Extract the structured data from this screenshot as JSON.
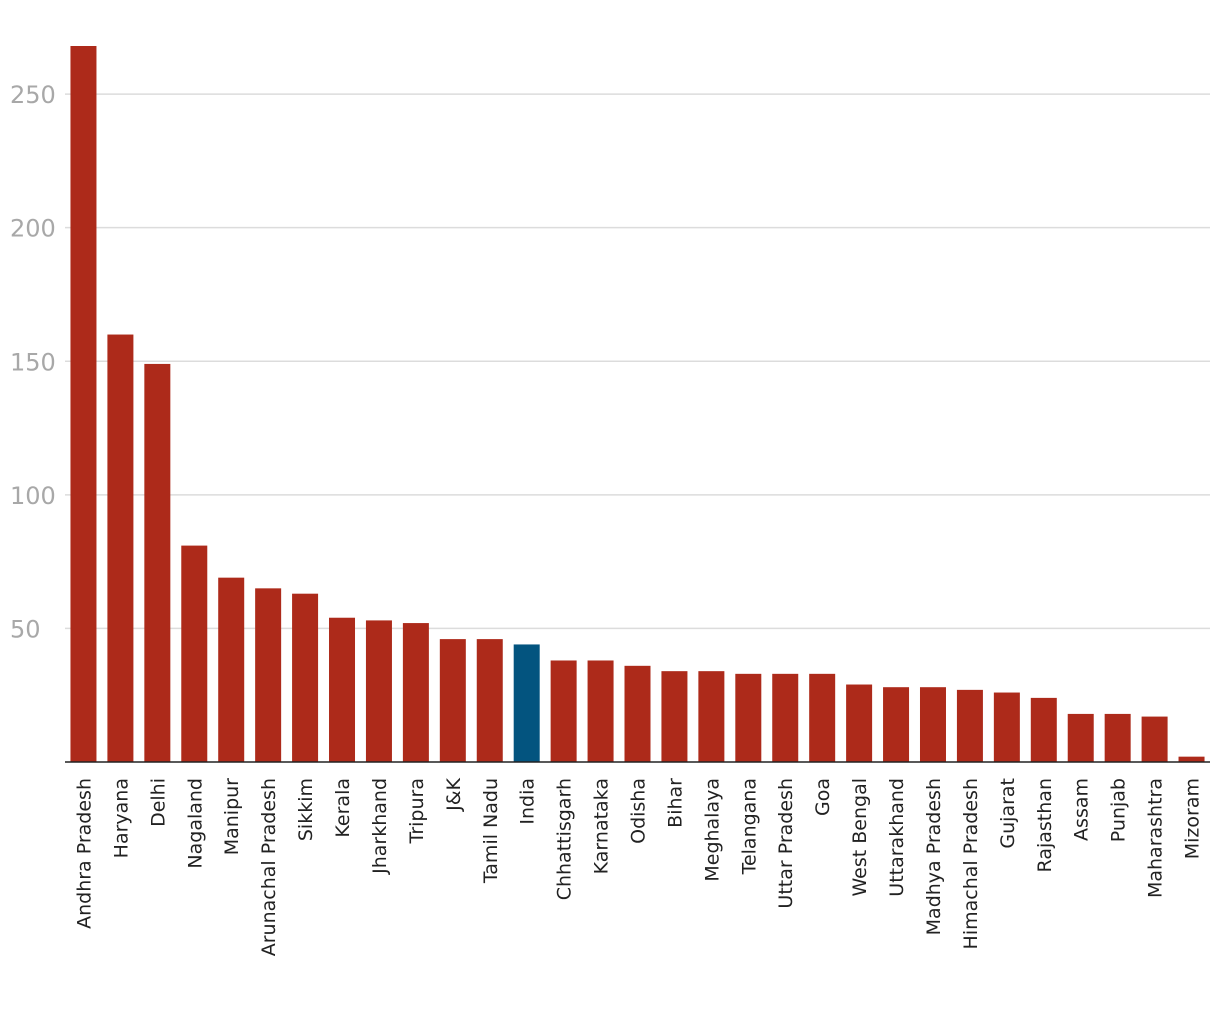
{
  "chart_data": {
    "type": "bar",
    "title": "",
    "xlabel": "",
    "ylabel": "",
    "ylim": [
      0,
      268
    ],
    "yticks": [
      50,
      100,
      150,
      200,
      250
    ],
    "grid": true,
    "categories": [
      "Andhra Pradesh",
      "Haryana",
      "Delhi",
      "Nagaland",
      "Manipur",
      "Arunachal Pradesh",
      "Sikkim",
      "Kerala",
      "Jharkhand",
      "Tripura",
      "J&K",
      "Tamil Nadu",
      "India",
      "Chhattisgarh",
      "Karnataka",
      "Odisha",
      "Bihar",
      "Meghalaya",
      "Telangana",
      "Uttar Pradesh",
      "Goa",
      "West Bengal",
      "Uttarakhand",
      "Madhya Pradesh",
      "Himachal Pradesh",
      "Gujarat",
      "Rajasthan",
      "Assam",
      "Punjab",
      "Maharashtra",
      "Mizoram"
    ],
    "values": [
      268,
      160,
      149,
      81,
      69,
      65,
      63,
      54,
      53,
      52,
      46,
      46,
      44,
      38,
      38,
      36,
      34,
      34,
      33,
      33,
      33,
      29,
      28,
      28,
      27,
      26,
      24,
      18,
      18,
      17,
      2
    ],
    "highlight_category": "India",
    "colors": {
      "bar": "#ad2a1a",
      "highlight": "#03547f",
      "grid": "#dcdcdc",
      "tick_label": "#a8a8a8",
      "category_label": "#222222",
      "axis": "#222222"
    }
  }
}
